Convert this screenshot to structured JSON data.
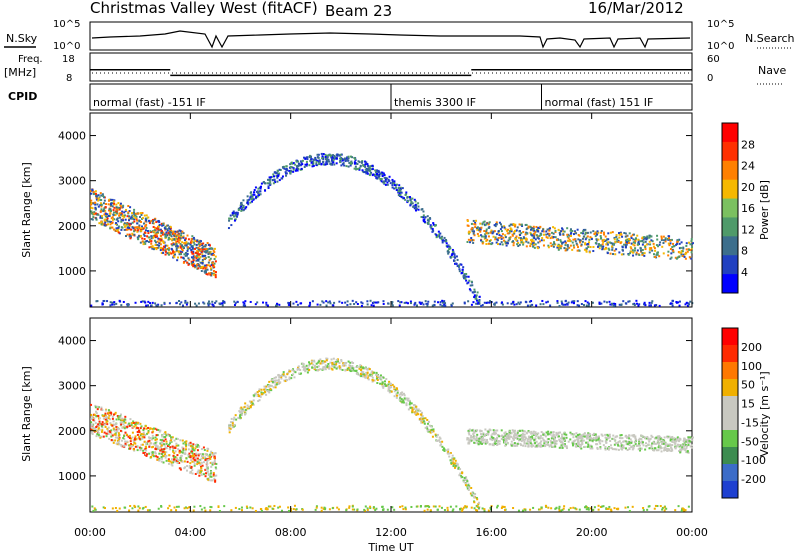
{
  "header": {
    "title": "Christmas Valley West (fitACF)",
    "beam": "Beam 23",
    "date": "16/Mar/2012"
  },
  "chart_data": [
    {
      "type": "line",
      "panel": "noise",
      "left_label": "N.Sky",
      "right_label": "N.Search",
      "left_ticks": [
        "10^5",
        "10^0"
      ],
      "right_ticks": [
        "10^5",
        "10^0"
      ]
    },
    {
      "type": "line",
      "panel": "frequency",
      "left_label_line1": "Freq.",
      "left_label_line2": "[MHz]",
      "right_label": "Nave",
      "left_ticks": [
        "18",
        "8"
      ],
      "right_ticks": [
        "60",
        "0"
      ],
      "steps": [
        {
          "start_h": 0.0,
          "end_h": 3.2,
          "freq": 12
        },
        {
          "start_h": 3.2,
          "end_h": 15.2,
          "freq": 10
        },
        {
          "start_h": 15.2,
          "end_h": 24.0,
          "freq": 12
        }
      ]
    },
    {
      "type": "table",
      "panel": "cpid",
      "label": "CPID",
      "segments": [
        {
          "start_h": 0.0,
          "end_h": 12.0,
          "name": "normal (fast) -151 IF"
        },
        {
          "start_h": 12.0,
          "end_h": 18.0,
          "name": "themis 3300 IF"
        },
        {
          "start_h": 18.0,
          "end_h": 24.0,
          "name": "normal (fast) 151 IF"
        }
      ]
    },
    {
      "type": "heatmap",
      "panel": "power",
      "ylabel": "Slant Range [km]",
      "ylim": [
        200,
        4500
      ],
      "yticks": [
        "4000",
        "3000",
        "2000",
        "1000"
      ],
      "colorbar_label": "Power [dB]",
      "colorbar_ticks": [
        "28",
        "24",
        "20",
        "16",
        "12",
        "8",
        "4"
      ],
      "colorbar_colors": [
        "#0000ff",
        "#2040c0",
        "#3c6e8c",
        "#4f9a6a",
        "#7bc060",
        "#f5b800",
        "#ff8000",
        "#ff3000",
        "#ff0000"
      ]
    },
    {
      "type": "heatmap",
      "panel": "velocity",
      "ylabel": "Slant Range [km]",
      "ylim": [
        200,
        4500
      ],
      "yticks": [
        "4000",
        "3000",
        "2000",
        "1000"
      ],
      "colorbar_label": "Velocity [m s⁻¹]",
      "colorbar_ticks": [
        "200",
        "100",
        "50",
        "15",
        "-15",
        "-50",
        "-100",
        "-200"
      ],
      "colorbar_colors": [
        "#1e40d0",
        "#3b6cc8",
        "#3c8c50",
        "#66c84a",
        "#c8c8c0",
        "#c8c8c0",
        "#f0b000",
        "#ff7800",
        "#ff2a00",
        "#ff0000"
      ]
    }
  ],
  "x_axis": {
    "label": "Time UT",
    "ticks": [
      "00:00",
      "04:00",
      "08:00",
      "12:00",
      "16:00",
      "20:00",
      "00:00"
    ],
    "range_h": [
      0,
      24
    ]
  }
}
